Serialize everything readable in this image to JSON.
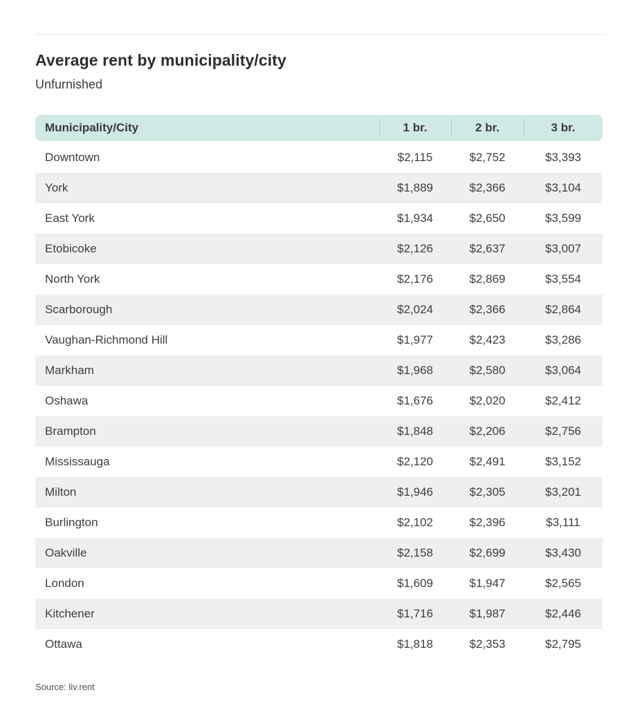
{
  "page": {
    "title": "Average rent by municipality/city",
    "subtitle": "Unfurnished",
    "source": "Source: liv.rent"
  },
  "colors": {
    "header_bg": "#cfe9e4",
    "header_divider": "#b2ccc7",
    "row_alt_bg": "#efefef",
    "title_text": "#2e2e2e",
    "body_text": "#3d3d3d"
  },
  "table": {
    "columns": [
      "Municipality/City",
      "1 br.",
      "2 br.",
      "3 br."
    ],
    "rows": [
      {
        "city": "Downtown",
        "br1": "$2,115",
        "br2": "$2,752",
        "br3": "$3,393"
      },
      {
        "city": "York",
        "br1": "$1,889",
        "br2": "$2,366",
        "br3": "$3,104"
      },
      {
        "city": "East York",
        "br1": "$1,934",
        "br2": "$2,650",
        "br3": "$3,599"
      },
      {
        "city": "Etobicoke",
        "br1": "$2,126",
        "br2": "$2,637",
        "br3": "$3,007"
      },
      {
        "city": "North York",
        "br1": "$2,176",
        "br2": "$2,869",
        "br3": "$3,554"
      },
      {
        "city": "Scarborough",
        "br1": "$2,024",
        "br2": "$2,366",
        "br3": "$2,864"
      },
      {
        "city": "Vaughan-Richmond Hill",
        "br1": "$1,977",
        "br2": "$2,423",
        "br3": "$3,286"
      },
      {
        "city": "Markham",
        "br1": "$1,968",
        "br2": "$2,580",
        "br3": "$3,064"
      },
      {
        "city": "Oshawa",
        "br1": "$1,676",
        "br2": "$2,020",
        "br3": "$2,412"
      },
      {
        "city": "Brampton",
        "br1": "$1,848",
        "br2": "$2,206",
        "br3": "$2,756"
      },
      {
        "city": "Mississauga",
        "br1": "$2,120",
        "br2": "$2,491",
        "br3": "$3,152"
      },
      {
        "city": "Milton",
        "br1": "$1,946",
        "br2": "$2,305",
        "br3": "$3,201"
      },
      {
        "city": "Burlington",
        "br1": "$2,102",
        "br2": "$2,396",
        "br3": "$3,111"
      },
      {
        "city": "Oakville",
        "br1": "$2,158",
        "br2": "$2,699",
        "br3": "$3,430"
      },
      {
        "city": "London",
        "br1": "$1,609",
        "br2": "$1,947",
        "br3": "$2,565"
      },
      {
        "city": "Kitchener",
        "br1": "$1,716",
        "br2": "$1,987",
        "br3": "$2,446"
      },
      {
        "city": "Ottawa",
        "br1": "$1,818",
        "br2": "$2,353",
        "br3": "$2,795"
      }
    ]
  },
  "chart_data": {
    "type": "table",
    "title": "Average rent by municipality/city",
    "subtitle": "Unfurnished",
    "unit": "$",
    "columns": [
      "Municipality/City",
      "1 br.",
      "2 br.",
      "3 br."
    ],
    "rows": [
      [
        "Downtown",
        2115,
        2752,
        3393
      ],
      [
        "York",
        1889,
        2366,
        3104
      ],
      [
        "East York",
        1934,
        2650,
        3599
      ],
      [
        "Etobicoke",
        2126,
        2637,
        3007
      ],
      [
        "North York",
        2176,
        2869,
        3554
      ],
      [
        "Scarborough",
        2024,
        2366,
        2864
      ],
      [
        "Vaughan-Richmond Hill",
        1977,
        2423,
        3286
      ],
      [
        "Markham",
        1968,
        2580,
        3064
      ],
      [
        "Oshawa",
        1676,
        2020,
        2412
      ],
      [
        "Brampton",
        1848,
        2206,
        2756
      ],
      [
        "Mississauga",
        2120,
        2491,
        3152
      ],
      [
        "Milton",
        1946,
        2305,
        3201
      ],
      [
        "Burlington",
        2102,
        2396,
        3111
      ],
      [
        "Oakville",
        2158,
        2699,
        3430
      ],
      [
        "London",
        1609,
        1947,
        2565
      ],
      [
        "Kitchener",
        1716,
        1987,
        2446
      ],
      [
        "Ottawa",
        1818,
        2353,
        2795
      ]
    ],
    "source": "Source: liv.rent"
  }
}
